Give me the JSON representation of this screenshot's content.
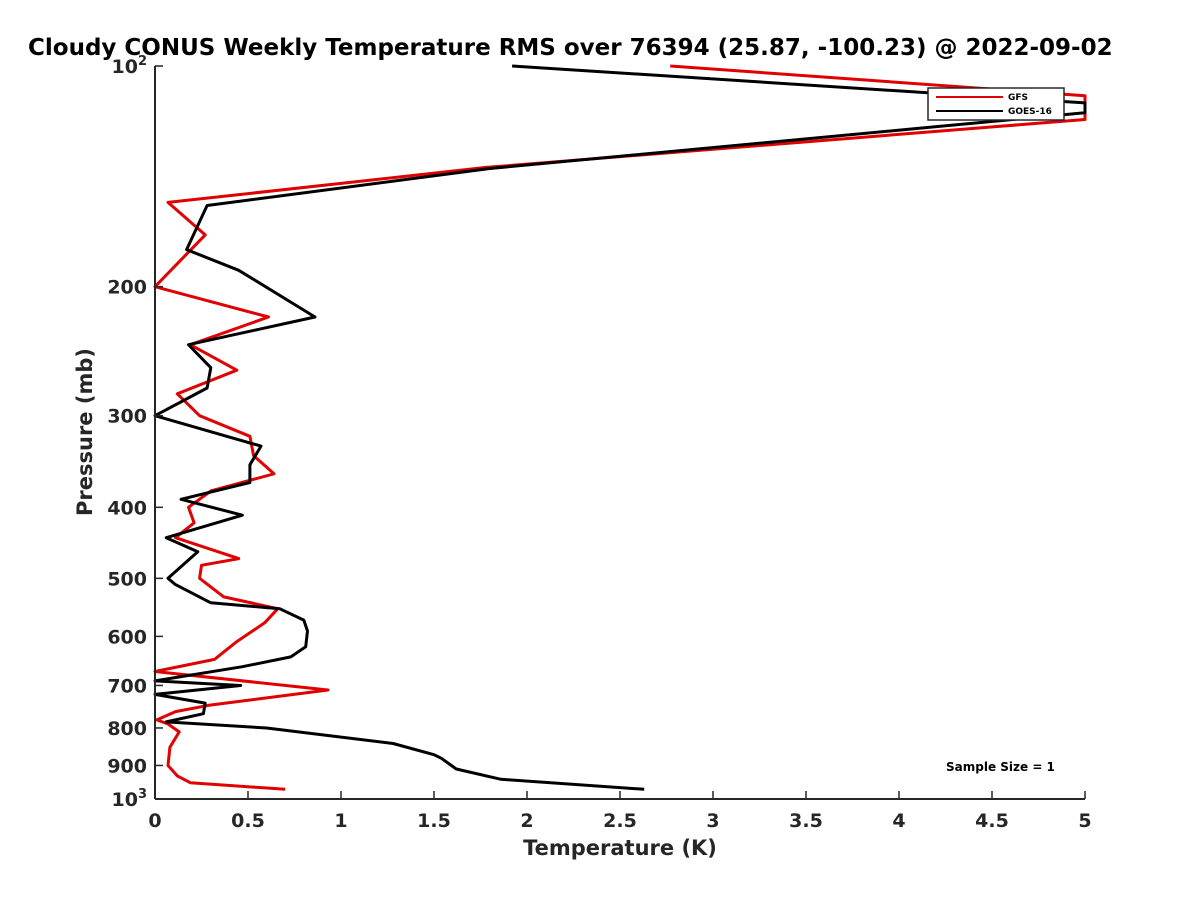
{
  "chart_data": {
    "type": "line",
    "title": "Cloudy CONUS Weekly Temperature RMS over 76394 (25.87, -100.23) @ 2022-09-02",
    "xlabel": "Temperature (K)",
    "ylabel": "Pressure (mb)",
    "xlim": [
      0,
      5
    ],
    "ylim": [
      100,
      1000
    ],
    "y_scale": "log",
    "y_reversed": true,
    "x_ticks": [
      {
        "value": 0,
        "label": "0"
      },
      {
        "value": 0.5,
        "label": "0.5"
      },
      {
        "value": 1,
        "label": "1"
      },
      {
        "value": 1.5,
        "label": "1.5"
      },
      {
        "value": 2,
        "label": "2"
      },
      {
        "value": 2.5,
        "label": "2.5"
      },
      {
        "value": 3,
        "label": "3"
      },
      {
        "value": 3.5,
        "label": "3.5"
      },
      {
        "value": 4,
        "label": "4"
      },
      {
        "value": 4.5,
        "label": "4.5"
      },
      {
        "value": 5,
        "label": "5"
      }
    ],
    "y_ticks": [
      {
        "value": 100,
        "label": "10",
        "sup": "2"
      },
      {
        "value": 200,
        "label": "200",
        "sup": ""
      },
      {
        "value": 300,
        "label": "300",
        "sup": ""
      },
      {
        "value": 400,
        "label": "400",
        "sup": ""
      },
      {
        "value": 500,
        "label": "500",
        "sup": ""
      },
      {
        "value": 600,
        "label": "600",
        "sup": ""
      },
      {
        "value": 700,
        "label": "700",
        "sup": ""
      },
      {
        "value": 800,
        "label": "800",
        "sup": ""
      },
      {
        "value": 900,
        "label": "900",
        "sup": ""
      },
      {
        "value": 1000,
        "label": "10",
        "sup": "3"
      }
    ],
    "grid": false,
    "legend_position": "top-right",
    "series": [
      {
        "name": "GFS",
        "color": "#e00000",
        "points": [
          [
            2.77,
            100
          ],
          [
            5.0,
            109.8
          ],
          [
            5.0,
            118.3
          ],
          [
            1.78,
            137.5
          ],
          [
            0.07,
            153.5
          ],
          [
            0.27,
            170.0
          ],
          [
            0.0,
            200.0
          ],
          [
            0.61,
            220.0
          ],
          [
            0.19,
            240.0
          ],
          [
            0.44,
            260.0
          ],
          [
            0.12,
            280.0
          ],
          [
            0.24,
            300.0
          ],
          [
            0.51,
            320.0
          ],
          [
            0.53,
            340.0
          ],
          [
            0.64,
            360.0
          ],
          [
            0.3,
            380.0
          ],
          [
            0.18,
            400.0
          ],
          [
            0.21,
            420.0
          ],
          [
            0.11,
            440.0
          ],
          [
            0.45,
            470.0
          ],
          [
            0.25,
            480.0
          ],
          [
            0.24,
            500.0
          ],
          [
            0.37,
            530.0
          ],
          [
            0.66,
            550.0
          ],
          [
            0.59,
            575.0
          ],
          [
            0.44,
            610.0
          ],
          [
            0.32,
            645.0
          ],
          [
            0.0,
            670.0
          ],
          [
            0.93,
            710.0
          ],
          [
            0.29,
            745.0
          ],
          [
            0.11,
            760.0
          ],
          [
            0.01,
            780.0
          ],
          [
            0.07,
            790.0
          ],
          [
            0.13,
            810.0
          ],
          [
            0.08,
            850.0
          ],
          [
            0.07,
            900.0
          ],
          [
            0.12,
            930.0
          ],
          [
            0.19,
            950.0
          ],
          [
            0.7,
            970.0
          ]
        ]
      },
      {
        "name": "GOES-16",
        "color": "#000000",
        "points": [
          [
            1.92,
            100
          ],
          [
            5.0,
            112.3
          ],
          [
            5.0,
            115.8
          ],
          [
            1.8,
            138.0
          ],
          [
            0.28,
            155.0
          ],
          [
            0.17,
            178.0
          ],
          [
            0.45,
            190.0
          ],
          [
            0.86,
            220.0
          ],
          [
            0.18,
            240.0
          ],
          [
            0.3,
            258.0
          ],
          [
            0.28,
            275.0
          ],
          [
            0.0,
            300.0
          ],
          [
            0.57,
            330.0
          ],
          [
            0.51,
            350.0
          ],
          [
            0.51,
            370.0
          ],
          [
            0.14,
            390.0
          ],
          [
            0.47,
            410.0
          ],
          [
            0.06,
            440.0
          ],
          [
            0.23,
            460.0
          ],
          [
            0.07,
            500.0
          ],
          [
            0.11,
            510.0
          ],
          [
            0.3,
            540.0
          ],
          [
            0.67,
            550.0
          ],
          [
            0.8,
            570.0
          ],
          [
            0.82,
            590.0
          ],
          [
            0.81,
            620.0
          ],
          [
            0.73,
            640.0
          ],
          [
            0.47,
            660.0
          ],
          [
            0.0,
            690.0
          ],
          [
            0.46,
            700.0
          ],
          [
            0.0,
            720.0
          ],
          [
            0.27,
            740.0
          ],
          [
            0.26,
            765.0
          ],
          [
            0.06,
            785.0
          ],
          [
            0.6,
            800.0
          ],
          [
            1.28,
            840.0
          ],
          [
            1.5,
            870.0
          ],
          [
            1.54,
            880.0
          ],
          [
            1.62,
            910.0
          ],
          [
            1.86,
            940.0
          ],
          [
            2.63,
            970.0
          ]
        ]
      }
    ],
    "annotations": [
      {
        "text": "Sample Size = 1",
        "position": "bottom-right"
      }
    ]
  }
}
